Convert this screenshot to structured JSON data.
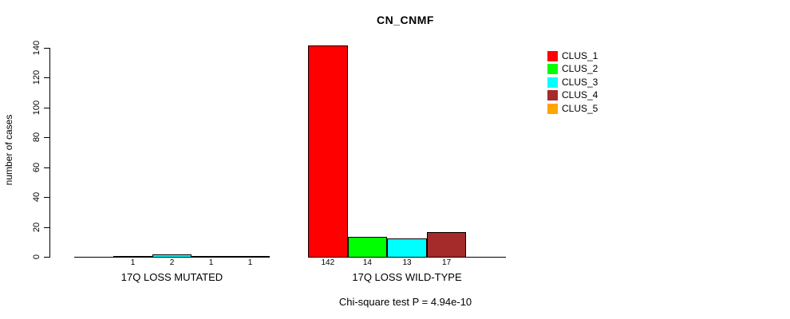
{
  "title": "CN_CNMF",
  "y_axis": {
    "label": "number of cases"
  },
  "footer": {
    "text": "Chi-square test P = 4.94e-10"
  },
  "legend": {
    "items": [
      {
        "label": "CLUS_1",
        "color": "#FF0000"
      },
      {
        "label": "CLUS_2",
        "color": "#00FF00"
      },
      {
        "label": "CLUS_3",
        "color": "#00FFFF"
      },
      {
        "label": "CLUS_4",
        "color": "#A52A2A"
      },
      {
        "label": "CLUS_5",
        "color": "#FFA500"
      }
    ]
  },
  "chart_data": {
    "type": "bar",
    "title": "CN_CNMF",
    "ylabel": "number of cases",
    "ylim": [
      0,
      140
    ],
    "yticks": [
      0,
      20,
      40,
      60,
      80,
      100,
      120,
      140
    ],
    "grid": false,
    "legend_position": "right",
    "series_names": [
      "CLUS_1",
      "CLUS_2",
      "CLUS_3",
      "CLUS_4",
      "CLUS_5"
    ],
    "series_colors": [
      "#FF0000",
      "#00FF00",
      "#00FFFF",
      "#A52A2A",
      "#FFA500"
    ],
    "groups": [
      {
        "label": "17Q LOSS MUTATED",
        "values": [
          0,
          1,
          2,
          1,
          1
        ]
      },
      {
        "label": "17Q LOSS WILD-TYPE",
        "values": [
          142,
          14,
          13,
          17,
          0
        ]
      }
    ],
    "value_labels": [
      [
        "1",
        "2",
        "1",
        "1"
      ],
      [
        "142",
        "14",
        "13",
        "17"
      ]
    ],
    "annotation": "Chi-square test P = 4.94e-10"
  }
}
